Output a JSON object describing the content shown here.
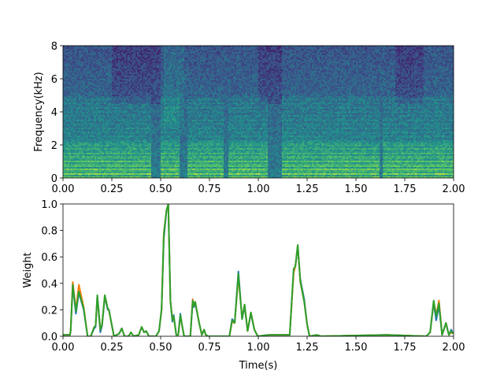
{
  "chart_data": [
    {
      "type": "heatmap",
      "title": "",
      "xlabel": "",
      "ylabel": "Frequency(kHz)",
      "xlim": [
        0,
        2
      ],
      "ylim": [
        0,
        8
      ],
      "xticks": [
        "0.00",
        "0.25",
        "0.50",
        "0.75",
        "1.00",
        "1.25",
        "1.50",
        "1.75",
        "2.00"
      ],
      "yticks": [
        "0",
        "2",
        "4",
        "6",
        "8"
      ],
      "colormap": "viridis"
    },
    {
      "type": "line",
      "title": "",
      "xlabel": "Time(s)",
      "ylabel": "Weight",
      "xlim": [
        0,
        2
      ],
      "ylim": [
        0,
        1
      ],
      "xticks": [
        "0.00",
        "0.25",
        "0.50",
        "0.75",
        "1.00",
        "1.25",
        "1.50",
        "1.75",
        "2.00"
      ],
      "yticks": [
        "0.0",
        "0.2",
        "0.4",
        "0.6",
        "0.8",
        "1.0"
      ],
      "colors": [
        "#1f77b4",
        "#ff7f0e",
        "#2ca02c"
      ],
      "x": [
        0,
        0.036,
        0.039,
        0.05,
        0.066,
        0.081,
        0.106,
        0.126,
        0.142,
        0.16,
        0.167,
        0.176,
        0.191,
        0.2,
        0.214,
        0.229,
        0.235,
        0.261,
        0.288,
        0.301,
        0.315,
        0.336,
        0.348,
        0.361,
        0.388,
        0.403,
        0.415,
        0.426,
        0.44,
        0.476,
        0.492,
        0.505,
        0.516,
        0.53,
        0.539,
        0.55,
        0.56,
        0.567,
        0.58,
        0.59,
        0.601,
        0.61,
        0.62,
        0.652,
        0.664,
        0.67,
        0.677,
        0.697,
        0.711,
        0.722,
        0.731,
        0.744,
        0.852,
        0.866,
        0.879,
        0.898,
        0.917,
        0.93,
        0.945,
        0.962,
        0.98,
        0.997,
        1.054,
        1.161,
        1.181,
        1.19,
        1.202,
        1.215,
        1.235,
        1.25,
        1.262,
        1.3,
        1.32,
        1.659,
        1.86,
        1.88,
        1.898,
        1.911,
        1.925,
        1.941,
        1.961,
        1.976,
        1.988,
        1.997
      ],
      "series": [
        {
          "name": "blue",
          "values": [
            0.01,
            0.01,
            0.04,
            0.38,
            0.17,
            0.33,
            0.2,
            0,
            0,
            0.06,
            0.07,
            0.3,
            0.03,
            0.08,
            0.3,
            0.2,
            0.2,
            0,
            0.02,
            0.06,
            0,
            0,
            0.03,
            0,
            0.01,
            0.07,
            0.03,
            0.04,
            0,
            0,
            0.04,
            0.2,
            0.74,
            0.95,
            1.0,
            0.27,
            0.11,
            0.16,
            0.01,
            0.01,
            0.17,
            0.08,
            0,
            0,
            0.26,
            0.22,
            0.25,
            0.1,
            0.01,
            0.05,
            0.01,
            0,
            0,
            0.13,
            0.1,
            0.49,
            0.13,
            0.23,
            0.04,
            0.17,
            0.05,
            0,
            0.01,
            0.01,
            0.5,
            0.53,
            0.68,
            0.43,
            0.28,
            0.09,
            0,
            0.01,
            0,
            0.01,
            0,
            0.03,
            0.25,
            0.12,
            0.23,
            0.01,
            0.1,
            0.01,
            0.05,
            0.02
          ]
        },
        {
          "name": "orange",
          "values": [
            0.01,
            0.01,
            0.04,
            0.41,
            0.2,
            0.39,
            0.22,
            0,
            0,
            0.07,
            0.08,
            0.3,
            0.05,
            0.09,
            0.31,
            0.21,
            0.2,
            0,
            0.02,
            0.06,
            0,
            0,
            0.03,
            0,
            0.01,
            0.07,
            0.03,
            0.04,
            0,
            0,
            0.04,
            0.2,
            0.78,
            0.95,
            1.0,
            0.27,
            0.13,
            0.15,
            0.01,
            0.01,
            0.15,
            0.08,
            0,
            0,
            0.28,
            0.23,
            0.26,
            0.1,
            0.01,
            0.05,
            0.01,
            0,
            0,
            0.11,
            0.1,
            0.45,
            0.14,
            0.24,
            0.04,
            0.18,
            0.05,
            0,
            0.01,
            0.01,
            0.48,
            0.53,
            0.69,
            0.41,
            0.26,
            0.09,
            0,
            0.01,
            0,
            0.01,
            0,
            0.03,
            0.26,
            0.16,
            0.27,
            0.01,
            0.1,
            0.01,
            0.03,
            0.02
          ]
        },
        {
          "name": "green",
          "values": [
            0.01,
            0.01,
            0.04,
            0.39,
            0.19,
            0.34,
            0.21,
            0,
            0,
            0.07,
            0.08,
            0.31,
            0.05,
            0.09,
            0.31,
            0.21,
            0.2,
            0,
            0.02,
            0.06,
            0,
            0,
            0.03,
            0,
            0.01,
            0.07,
            0.03,
            0.04,
            0,
            0,
            0.04,
            0.21,
            0.77,
            0.95,
            1.0,
            0.27,
            0.12,
            0.15,
            0.01,
            0.01,
            0.16,
            0.08,
            0,
            0,
            0.27,
            0.23,
            0.26,
            0.1,
            0.01,
            0.05,
            0.01,
            0,
            0,
            0.12,
            0.1,
            0.47,
            0.13,
            0.24,
            0.04,
            0.18,
            0.05,
            0,
            0.01,
            0.01,
            0.51,
            0.53,
            0.69,
            0.42,
            0.26,
            0.09,
            0,
            0.01,
            0,
            0.01,
            0,
            0.03,
            0.27,
            0.15,
            0.25,
            0.01,
            0.1,
            0.01,
            0.04,
            0.02
          ]
        }
      ]
    }
  ]
}
